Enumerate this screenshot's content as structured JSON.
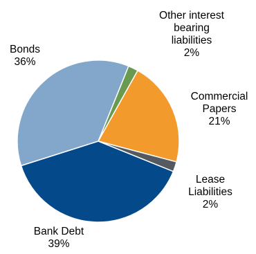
{
  "chart_data": {
    "type": "pie",
    "title": "",
    "slices": [
      {
        "id": "other-interest-bearing-liabilities",
        "label_lines": [
          "Other interest",
          "bearing",
          "liabilities"
        ],
        "value": 2,
        "value_label": "2%",
        "color": "#6a9a4f"
      },
      {
        "id": "commercial-papers",
        "label_lines": [
          "Commercial",
          "Papers"
        ],
        "value": 21,
        "value_label": "21%",
        "color": "#f39a2c"
      },
      {
        "id": "lease-liabilities",
        "label_lines": [
          "Lease",
          "Liabilities"
        ],
        "value": 2,
        "value_label": "2%",
        "color": "#555a61"
      },
      {
        "id": "bank-debt",
        "label_lines": [
          "Bank Debt"
        ],
        "value": 39,
        "value_label": "39%",
        "color": "#044a8b"
      },
      {
        "id": "bonds",
        "label_lines": [
          "Bonds"
        ],
        "value": 36,
        "value_label": "36%",
        "color": "#82a7cb"
      }
    ]
  }
}
